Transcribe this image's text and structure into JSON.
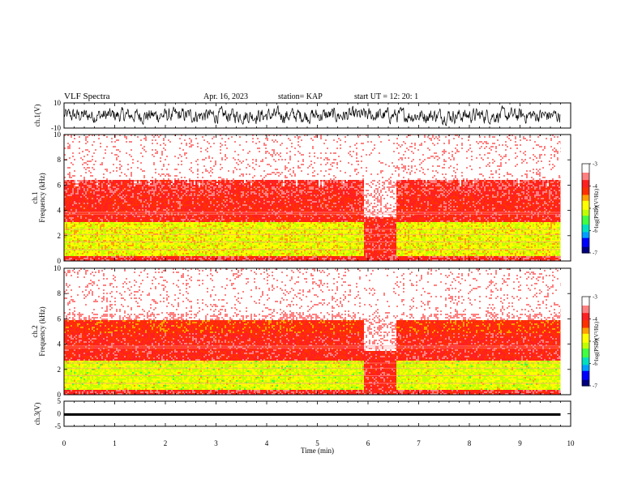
{
  "header": {
    "title": "VLF Spectra",
    "date": "Apr. 16, 2023",
    "station": "station= KAP",
    "start": "start  UT  =   12: 20: 1"
  },
  "colors": {
    "colormap": [
      "#000080",
      "#0000ff",
      "#00a0ff",
      "#00e0c0",
      "#40ff40",
      "#c0ff00",
      "#ffff00",
      "#ffa000",
      "#ff3000",
      "#ff2020",
      "#ff8080",
      "#ffffff"
    ]
  },
  "chart_data": [
    {
      "type": "line",
      "panel": "ch1-waveform",
      "ylabel": "ch.1(V)",
      "ylim": [
        -10,
        10
      ],
      "yticks": [
        "10",
        "-10"
      ],
      "xlim": [
        0,
        10
      ],
      "description_of_values": "noise waveform roughly between -8 and 8 V"
    },
    {
      "type": "heatmap",
      "panel": "ch1-spectrogram",
      "ylabel": "ch.1\nFrequency (kHz)",
      "ylabel_line1": "ch.1",
      "ylabel_line2": "Frequency (kHz)",
      "ylim": [
        0,
        10
      ],
      "yticks": [
        "0",
        "2",
        "4",
        "6",
        "8",
        "10"
      ],
      "xlim": [
        0,
        10
      ],
      "data_end_min": 9.8,
      "colorbar": {
        "label": "log(PSD)(V²/Hz)",
        "range": [
          -7,
          -3
        ],
        "ticks": [
          "-3",
          "-4",
          "-5",
          "-6",
          "-7"
        ]
      },
      "bands_kHz_logpsd": [
        {
          "from": 0,
          "to": 0.5,
          "logpsd": -3.8
        },
        {
          "from": 0.5,
          "to": 3.2,
          "logpsd": -4.9
        },
        {
          "from": 3.2,
          "to": 5.2,
          "logpsd": -3.9
        },
        {
          "from": 5.2,
          "to": 6.5,
          "logpsd": -3.8
        },
        {
          "from": 6.5,
          "to": 10,
          "logpsd": -3.3
        }
      ],
      "gap_interval_min": [
        5.9,
        6.55
      ]
    },
    {
      "type": "heatmap",
      "panel": "ch2-spectrogram",
      "ylabel": "ch.2\nFrequency (kHz)",
      "ylabel_line1": "ch.2",
      "ylabel_line2": "Frequency (kHz)",
      "ylim": [
        0,
        10
      ],
      "yticks": [
        "0",
        "2",
        "4",
        "6",
        "8",
        "10"
      ],
      "xlim": [
        0,
        10
      ],
      "data_end_min": 9.8,
      "colorbar": {
        "label": "log(PSD)(V²/Hz)",
        "range": [
          -7,
          -3
        ],
        "ticks": [
          "-3",
          "-4",
          "-5",
          "-6",
          "-7"
        ]
      },
      "bands_kHz_logpsd": [
        {
          "from": 0,
          "to": 0.5,
          "logpsd": -3.8
        },
        {
          "from": 0.5,
          "to": 2.8,
          "logpsd": -5.0
        },
        {
          "from": 2.8,
          "to": 5.0,
          "logpsd": -3.9
        },
        {
          "from": 5.0,
          "to": 6.0,
          "logpsd": -4.1
        },
        {
          "from": 6.0,
          "to": 10,
          "logpsd": -3.3
        }
      ],
      "gap_interval_min": [
        5.9,
        6.55
      ]
    },
    {
      "type": "line",
      "panel": "ch3-waveform",
      "ylabel": "ch.3(V)",
      "ylim": [
        -5,
        5
      ],
      "yticks": [
        "5",
        "0",
        "-5"
      ],
      "xlim": [
        0,
        10
      ],
      "xlabel": "Time  (min)",
      "xticks": [
        "0",
        "1",
        "2",
        "3",
        "4",
        "5",
        "6",
        "7",
        "8",
        "9",
        "10"
      ],
      "level_band_V": [
        -0.8,
        0.2
      ]
    }
  ]
}
